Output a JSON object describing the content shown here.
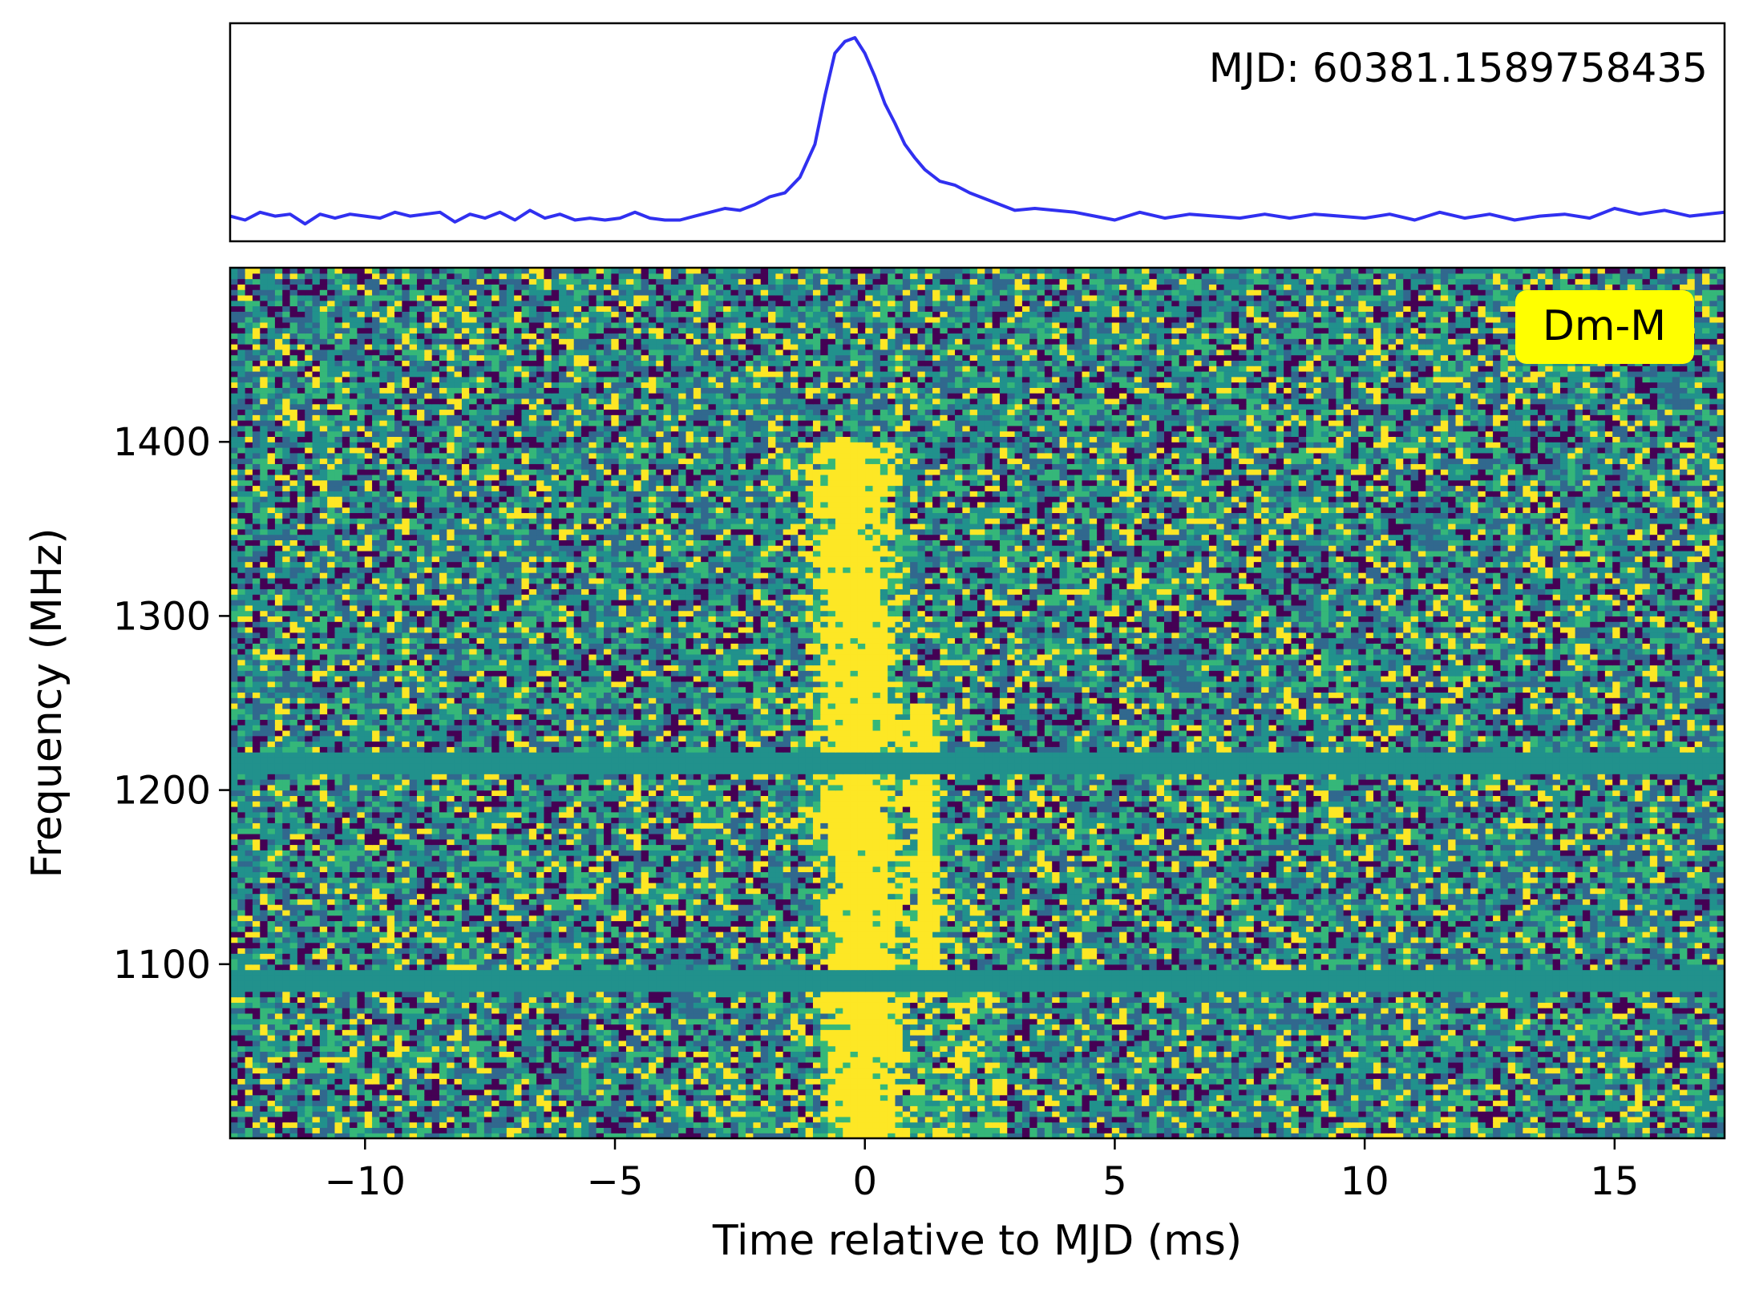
{
  "chart_data": [
    {
      "type": "line",
      "panel": "profile",
      "annotation": "MJD: 60381.1589758435",
      "line_color": "#3030f0",
      "x_range": [
        -12.7,
        17.2
      ],
      "axes_hidden": true,
      "x": [
        -12.7,
        -12.4,
        -12.1,
        -11.8,
        -11.5,
        -11.2,
        -10.9,
        -10.6,
        -10.3,
        -10.0,
        -9.7,
        -9.4,
        -9.1,
        -8.8,
        -8.5,
        -8.2,
        -7.9,
        -7.6,
        -7.3,
        -7.0,
        -6.7,
        -6.4,
        -6.1,
        -5.8,
        -5.5,
        -5.2,
        -4.9,
        -4.6,
        -4.3,
        -4.0,
        -3.7,
        -3.4,
        -3.1,
        -2.8,
        -2.5,
        -2.2,
        -1.9,
        -1.6,
        -1.3,
        -1.0,
        -0.8,
        -0.6,
        -0.4,
        -0.2,
        0.0,
        0.2,
        0.4,
        0.6,
        0.8,
        1.0,
        1.2,
        1.5,
        1.8,
        2.1,
        2.4,
        2.7,
        3.0,
        3.4,
        3.8,
        4.2,
        4.6,
        5.0,
        5.5,
        6.0,
        6.5,
        7.0,
        7.5,
        8.0,
        8.5,
        9.0,
        9.5,
        10.0,
        10.5,
        11.0,
        11.5,
        12.0,
        12.5,
        13.0,
        13.5,
        14.0,
        14.5,
        15.0,
        15.5,
        16.0,
        16.5,
        17.2
      ],
      "y": [
        0.08,
        0.06,
        0.1,
        0.08,
        0.09,
        0.04,
        0.09,
        0.07,
        0.09,
        0.08,
        0.07,
        0.1,
        0.08,
        0.09,
        0.1,
        0.05,
        0.09,
        0.07,
        0.1,
        0.06,
        0.11,
        0.07,
        0.09,
        0.06,
        0.07,
        0.06,
        0.07,
        0.1,
        0.07,
        0.06,
        0.06,
        0.08,
        0.1,
        0.12,
        0.11,
        0.14,
        0.18,
        0.2,
        0.28,
        0.45,
        0.7,
        0.92,
        0.98,
        1.0,
        0.92,
        0.8,
        0.66,
        0.56,
        0.45,
        0.38,
        0.32,
        0.26,
        0.24,
        0.2,
        0.17,
        0.14,
        0.11,
        0.12,
        0.11,
        0.1,
        0.08,
        0.06,
        0.1,
        0.07,
        0.09,
        0.08,
        0.07,
        0.09,
        0.07,
        0.09,
        0.08,
        0.07,
        0.09,
        0.06,
        0.1,
        0.07,
        0.09,
        0.06,
        0.08,
        0.09,
        0.07,
        0.12,
        0.09,
        0.11,
        0.08,
        0.1
      ]
    },
    {
      "type": "heatmap",
      "panel": "dynamic-spectrum",
      "xlabel": "Time relative to MJD (ms)",
      "ylabel": "Frequency (MHz)",
      "xlim": [
        -12.7,
        17.2
      ],
      "ylim": [
        1000,
        1500
      ],
      "xticks": [
        -10,
        -5,
        0,
        5,
        10,
        15
      ],
      "xtick_labels": [
        "−10",
        "−5",
        "0",
        "5",
        "10",
        "15"
      ],
      "yticks": [
        1100,
        1200,
        1300,
        1400
      ],
      "ytick_labels": [
        "1100",
        "1200",
        "1300",
        "1400"
      ],
      "colormap": "viridis",
      "colors": [
        "#440154",
        "#31688e",
        "#21918c",
        "#35b779",
        "#fde725"
      ],
      "masked_channels_mhz": [
        [
          1085,
          1098
        ],
        [
          1208,
          1222
        ]
      ],
      "burst_components": [
        {
          "t_ms": -0.2,
          "width_ms": 1.5,
          "f_from_mhz": 1000,
          "f_to_mhz": 1400
        },
        {
          "t_ms": 1.1,
          "width_ms": 0.5,
          "f_from_mhz": 1080,
          "f_to_mhz": 1250
        }
      ],
      "label": "Dm-M",
      "label_bg": "#ffff00",
      "grid": false
    }
  ]
}
